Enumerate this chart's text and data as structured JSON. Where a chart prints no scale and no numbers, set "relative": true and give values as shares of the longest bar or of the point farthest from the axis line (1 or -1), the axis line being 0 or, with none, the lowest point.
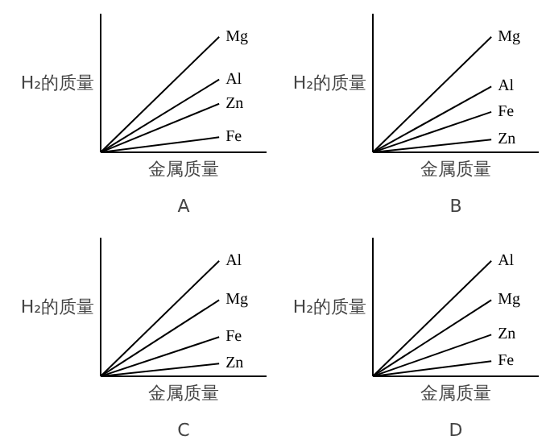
{
  "chart_data": [
    {
      "type": "line",
      "title": "A",
      "xlabel": "金属质量",
      "ylabel": "H₂的质量",
      "relative": true,
      "categories": [
        null,
        null
      ],
      "legend": false,
      "marker": "none",
      "line_style": "solid",
      "series": [
        {
          "name": "Mg",
          "color": "#000000",
          "values": [
            0,
            1
          ]
        },
        {
          "name": "Al",
          "color": "#000000",
          "values": [
            0,
            0.63
          ]
        },
        {
          "name": "Zn",
          "color": "#000000",
          "values": [
            0,
            0.42
          ]
        },
        {
          "name": "Fe",
          "color": "#000000",
          "values": [
            0,
            0.13
          ]
        }
      ]
    },
    {
      "type": "line",
      "title": "B",
      "xlabel": "金属质量",
      "ylabel": "H₂的质量",
      "relative": true,
      "categories": [
        null,
        null
      ],
      "legend": false,
      "marker": "none",
      "line_style": "solid",
      "series": [
        {
          "name": "Mg",
          "color": "#000000",
          "values": [
            0,
            1
          ]
        },
        {
          "name": "Al",
          "color": "#000000",
          "values": [
            0,
            0.57
          ]
        },
        {
          "name": "Fe",
          "color": "#000000",
          "values": [
            0,
            0.35
          ]
        },
        {
          "name": "Zn",
          "color": "#000000",
          "values": [
            0,
            0.11
          ]
        }
      ]
    },
    {
      "type": "line",
      "title": "C",
      "xlabel": "金属质量",
      "ylabel": "H₂的质量",
      "relative": true,
      "categories": [
        null,
        null
      ],
      "legend": false,
      "marker": "none",
      "line_style": "solid",
      "series": [
        {
          "name": "Al",
          "color": "#000000",
          "values": [
            0,
            1
          ]
        },
        {
          "name": "Mg",
          "color": "#000000",
          "values": [
            0,
            0.66
          ]
        },
        {
          "name": "Fe",
          "color": "#000000",
          "values": [
            0,
            0.34
          ]
        },
        {
          "name": "Zn",
          "color": "#000000",
          "values": [
            0,
            0.11
          ]
        }
      ]
    },
    {
      "type": "line",
      "title": "D",
      "xlabel": "金属质量",
      "ylabel": "H₂的质量",
      "relative": true,
      "categories": [
        null,
        null
      ],
      "legend": false,
      "marker": "none",
      "line_style": "solid",
      "series": [
        {
          "name": "Al",
          "color": "#000000",
          "values": [
            0,
            1
          ]
        },
        {
          "name": "Mg",
          "color": "#000000",
          "values": [
            0,
            0.66
          ]
        },
        {
          "name": "Zn",
          "color": "#000000",
          "values": [
            0,
            0.36
          ]
        },
        {
          "name": "Fe",
          "color": "#000000",
          "values": [
            0,
            0.13
          ]
        }
      ]
    }
  ]
}
